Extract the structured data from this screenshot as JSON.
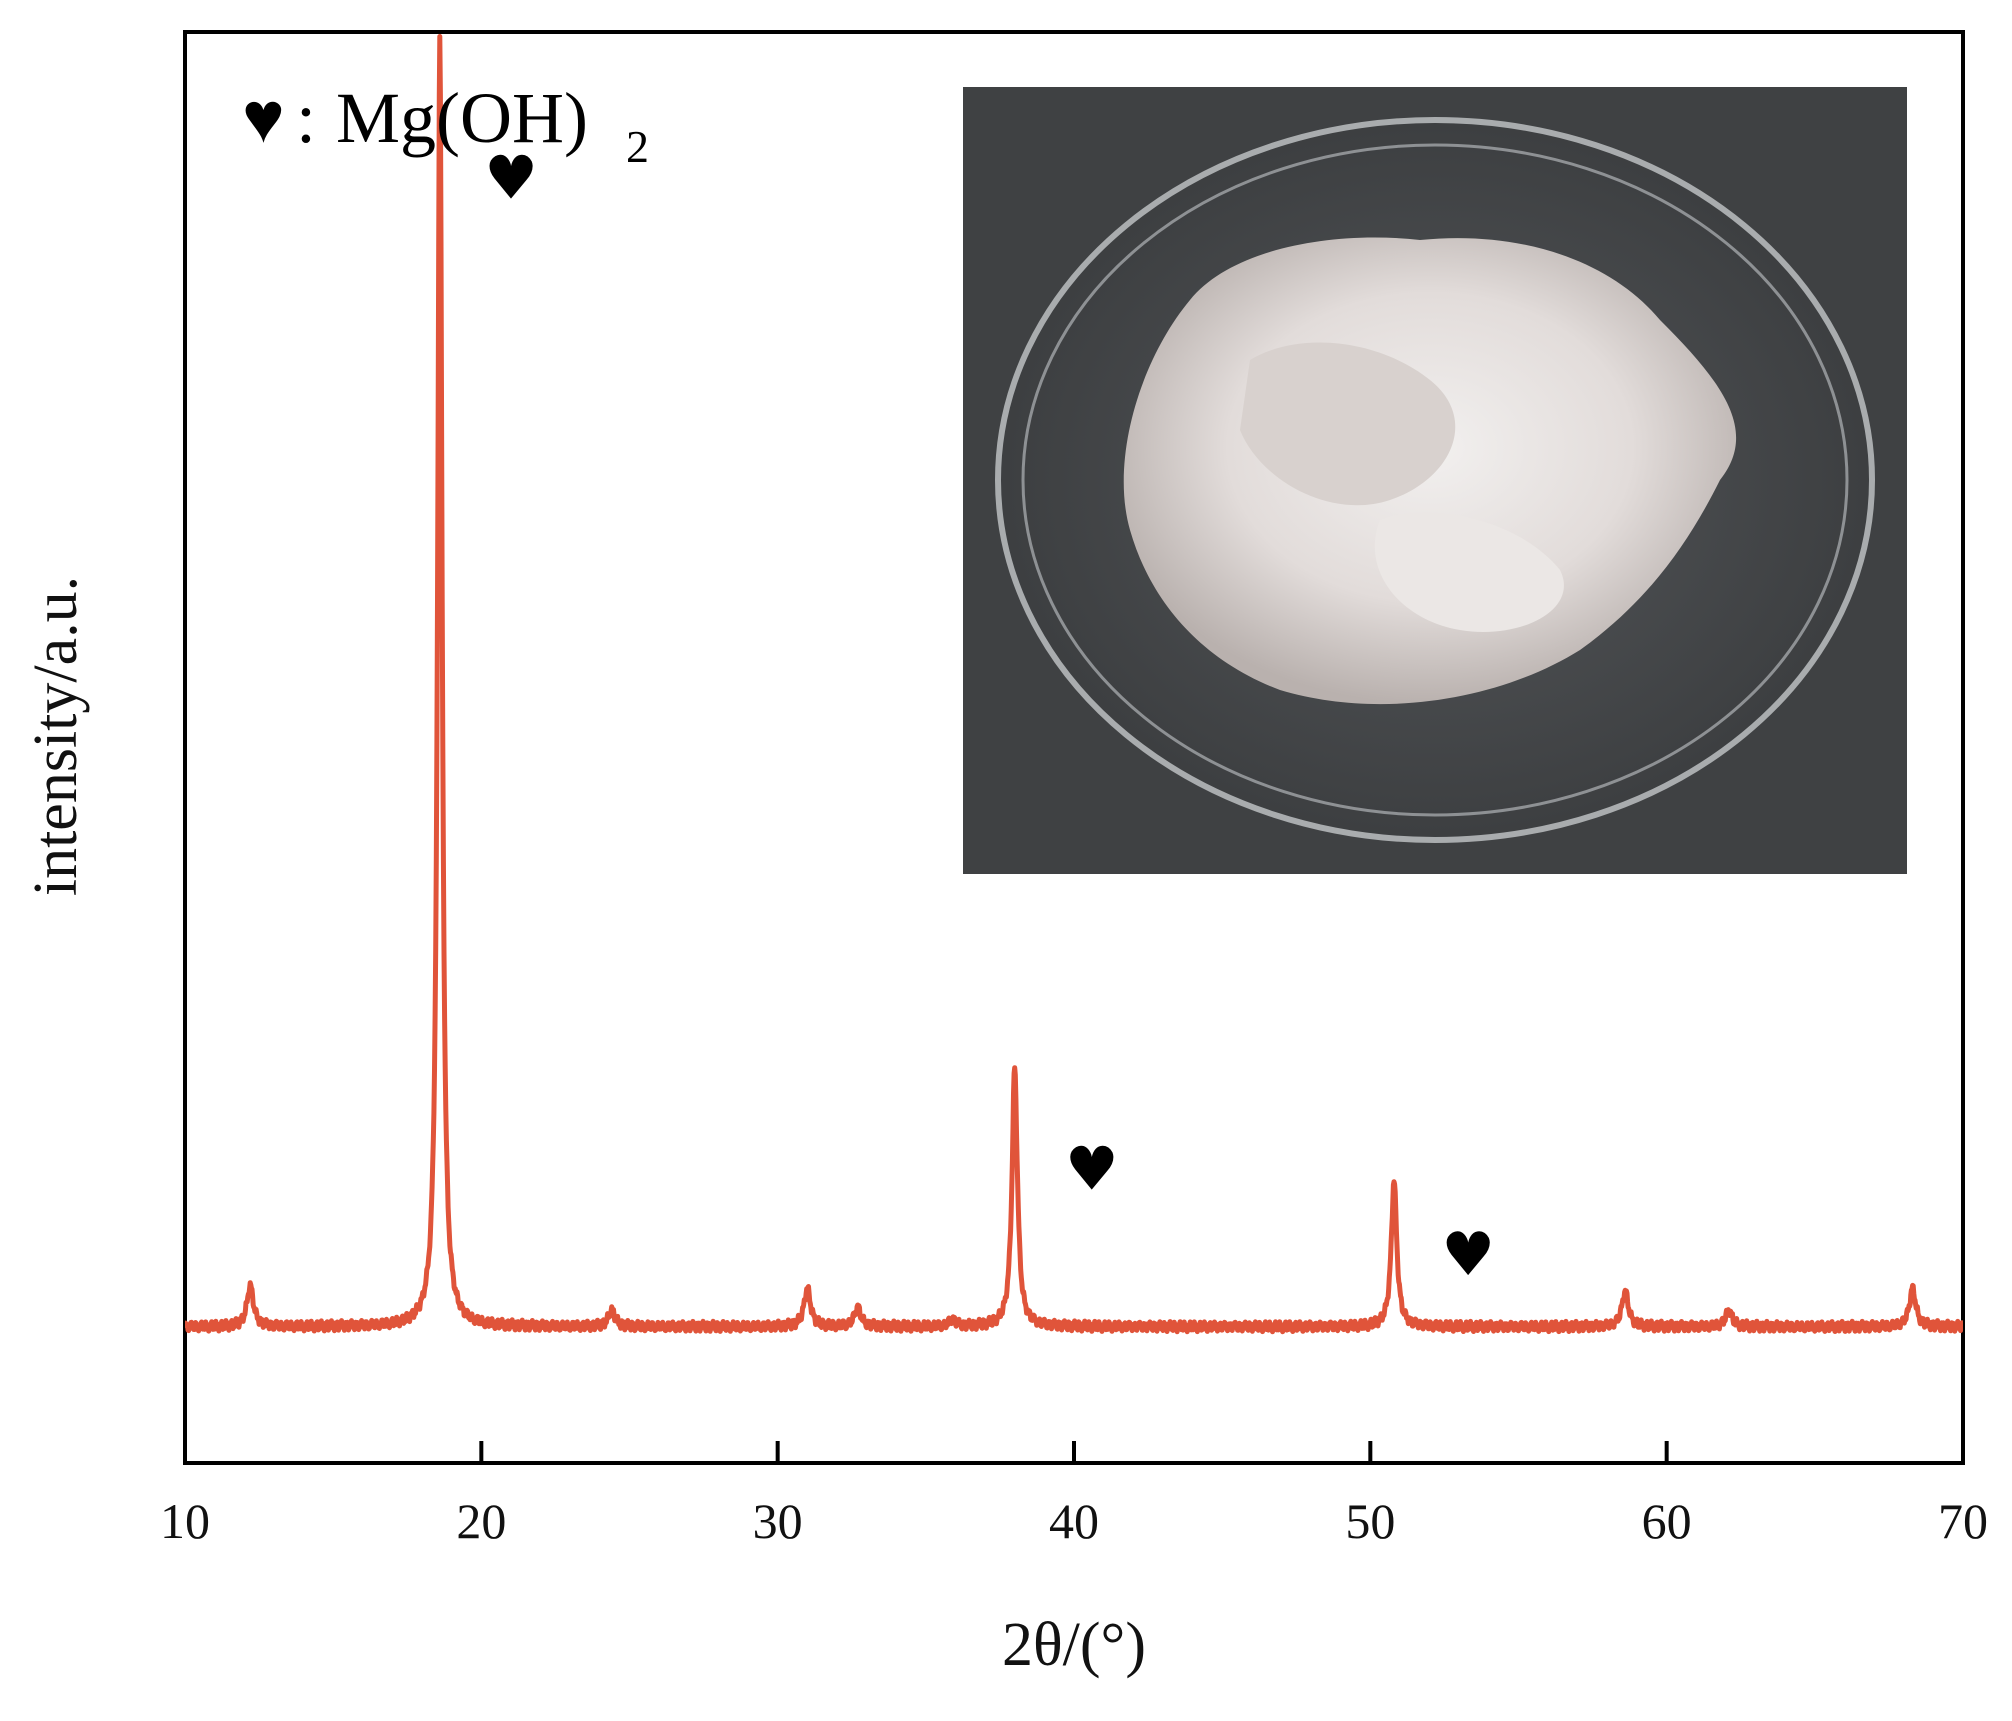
{
  "chart_data": {
    "type": "line",
    "xlabel": "2θ/(°)",
    "ylabel": "intensity/a.u.",
    "xlim": [
      10,
      70
    ],
    "ylim": [
      -50,
      1000
    ],
    "x_ticks": [
      10,
      20,
      30,
      40,
      50,
      60,
      70
    ],
    "y_ticks_shown": false,
    "grid": false,
    "line_color": "#e0543a",
    "baseline": 50,
    "peaks": [
      {
        "x": 12.2,
        "y": 80
      },
      {
        "x": 18.6,
        "y": 1000
      },
      {
        "x": 24.4,
        "y": 62
      },
      {
        "x": 31.0,
        "y": 78
      },
      {
        "x": 32.7,
        "y": 64
      },
      {
        "x": 35.9,
        "y": 55
      },
      {
        "x": 38.0,
        "y": 240
      },
      {
        "x": 50.8,
        "y": 158
      },
      {
        "x": 58.6,
        "y": 76
      },
      {
        "x": 62.1,
        "y": 62
      },
      {
        "x": 68.3,
        "y": 78
      }
    ],
    "markers": [
      {
        "x": 21.0,
        "y": 894,
        "symbol": "♥"
      },
      {
        "x": 40.6,
        "y": 167,
        "symbol": "♥"
      },
      {
        "x": 53.3,
        "y": 104,
        "symbol": "♥"
      }
    ],
    "legend": {
      "symbol": "♥",
      "separator": ":",
      "text": "Mg(OH)",
      "subscript": "2",
      "position": "top-left"
    },
    "inset_image": {
      "description_icon": "petri-dish-photo",
      "position": "top-right"
    }
  }
}
